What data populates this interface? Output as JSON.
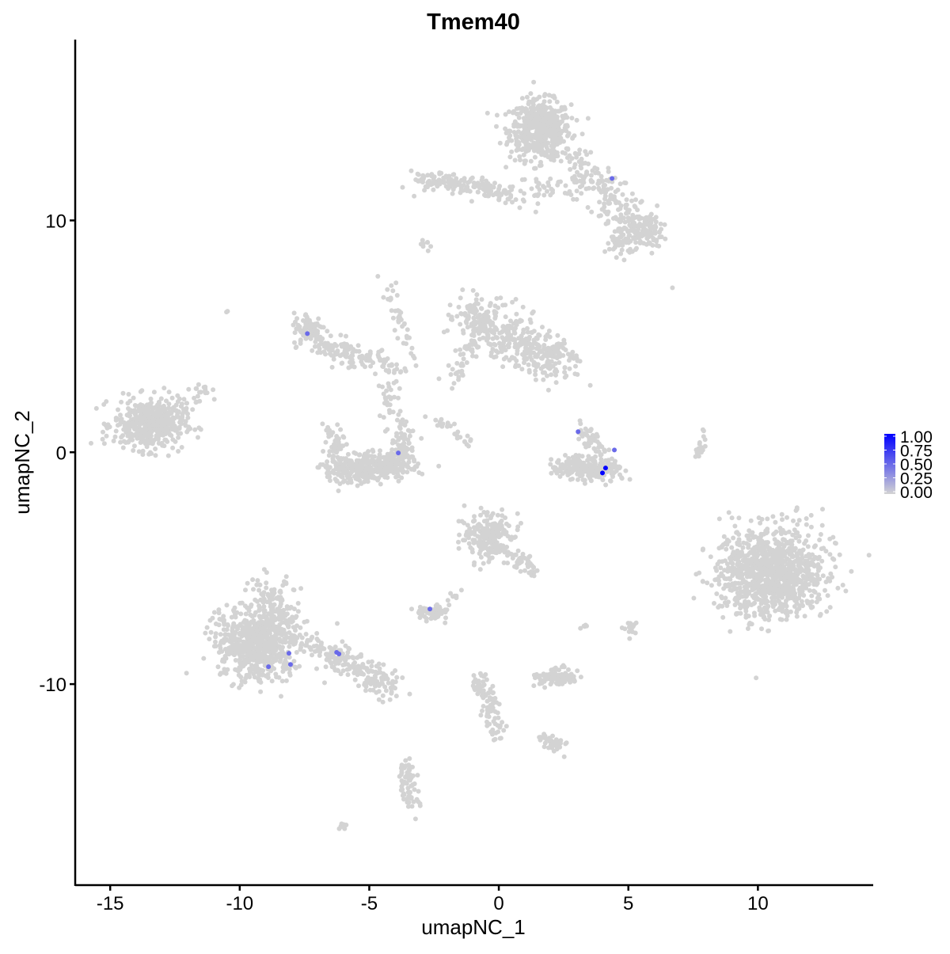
{
  "chart_data": {
    "type": "scatter",
    "title": "Tmem40",
    "xlabel": "umapNC_1",
    "ylabel": "umapNC_2",
    "xlim": [
      -16.35,
      14.45
    ],
    "ylim": [
      -18.67,
      17.8
    ],
    "xticks": [
      -15,
      -10,
      -5,
      0,
      5,
      10
    ],
    "yticks": [
      -10,
      0,
      10
    ],
    "xtick_labels": [
      "-15",
      "-10",
      "-5",
      "0",
      "5",
      "10"
    ],
    "ytick_labels": [
      "-10",
      "0",
      "10"
    ],
    "grid": false,
    "color_scale": {
      "low": "#D3D3D3",
      "high": "#0000FF",
      "min": 0,
      "max": 1
    },
    "legend": {
      "position": "right",
      "tick_values": [
        1.0,
        0.75,
        0.5,
        0.25,
        0.0
      ],
      "tick_labels": [
        "1.00",
        "0.75",
        "0.50",
        "0.25",
        "0.00"
      ]
    },
    "grey_cell_regions": [
      {
        "center": [
          1.6,
          13.9
        ],
        "spread": [
          0.65,
          0.7
        ],
        "n": 550
      },
      {
        "from": [
          2.8,
          12.8
        ],
        "to": [
          5.5,
          9.6
        ],
        "spread": [
          0.45,
          0.45
        ],
        "n": 180
      },
      {
        "center": [
          5.5,
          9.5
        ],
        "spread": [
          0.45,
          0.35
        ],
        "n": 120
      },
      {
        "center": [
          4.7,
          9.0
        ],
        "spread": [
          0.3,
          0.3
        ],
        "n": 40
      },
      {
        "from": [
          -3.1,
          11.8
        ],
        "to": [
          0.4,
          11.2
        ],
        "spread": [
          0.3,
          0.22
        ],
        "n": 160
      },
      {
        "from": [
          0.6,
          11.0
        ],
        "to": [
          3.2,
          11.6
        ],
        "spread": [
          0.3,
          0.35
        ],
        "n": 60
      },
      {
        "center": [
          -13.5,
          1.2
        ],
        "spread": [
          0.75,
          0.6
        ],
        "n": 450
      },
      {
        "from": [
          -12.6,
          1.5
        ],
        "to": [
          -11.3,
          2.8
        ],
        "spread": [
          0.25,
          0.25
        ],
        "n": 40
      },
      {
        "center": [
          -7.3,
          5.3
        ],
        "spread": [
          0.35,
          0.4
        ],
        "n": 90
      },
      {
        "from": [
          -7.0,
          4.6
        ],
        "to": [
          -4.0,
          3.8
        ],
        "spread": [
          0.35,
          0.3
        ],
        "n": 130
      },
      {
        "from": [
          -4.4,
          7.5
        ],
        "to": [
          -3.3,
          4.0
        ],
        "spread": [
          0.15,
          0.2
        ],
        "n": 40
      },
      {
        "from": [
          -4.3,
          3.2
        ],
        "to": [
          -4.1,
          1.0
        ],
        "spread": [
          0.2,
          0.2
        ],
        "n": 30
      },
      {
        "from": [
          -6.2,
          -0.9
        ],
        "to": [
          -3.7,
          -0.4
        ],
        "spread": [
          0.5,
          0.35
        ],
        "n": 380
      },
      {
        "from": [
          -6.4,
          1.0
        ],
        "to": [
          -6.2,
          -0.5
        ],
        "spread": [
          0.2,
          0.25
        ],
        "n": 50
      },
      {
        "from": [
          -3.8,
          1.4
        ],
        "to": [
          -3.6,
          -0.3
        ],
        "spread": [
          0.2,
          0.25
        ],
        "n": 50
      },
      {
        "from": [
          -1.3,
          6.0
        ],
        "to": [
          2.5,
          3.8
        ],
        "spread": [
          0.5,
          0.55
        ],
        "n": 450
      },
      {
        "from": [
          -1.8,
          3.0
        ],
        "to": [
          -1.0,
          5.0
        ],
        "spread": [
          0.2,
          0.25
        ],
        "n": 40
      },
      {
        "from": [
          -2.5,
          1.5
        ],
        "to": [
          -1.2,
          0.3
        ],
        "spread": [
          0.15,
          0.15
        ],
        "n": 25
      },
      {
        "from": [
          2.4,
          -0.6
        ],
        "to": [
          4.3,
          -0.8
        ],
        "spread": [
          0.45,
          0.25
        ],
        "n": 220
      },
      {
        "from": [
          3.1,
          1.2
        ],
        "to": [
          4.0,
          -0.2
        ],
        "spread": [
          0.2,
          0.2
        ],
        "n": 50
      },
      {
        "center": [
          10.5,
          -5.2
        ],
        "spread": [
          1.1,
          1.05
        ],
        "n": 1100
      },
      {
        "from": [
          7.6,
          -0.2
        ],
        "to": [
          8.0,
          1.0
        ],
        "spread": [
          0.08,
          0.2
        ],
        "n": 20
      },
      {
        "center": [
          -9.3,
          -8.3
        ],
        "spread": [
          0.9,
          0.8
        ],
        "n": 650
      },
      {
        "from": [
          -9.0,
          -6.0
        ],
        "to": [
          -8.3,
          -7.5
        ],
        "spread": [
          0.5,
          0.5
        ],
        "n": 150
      },
      {
        "from": [
          -7.2,
          -8.2
        ],
        "to": [
          -4.1,
          -10.2
        ],
        "spread": [
          0.35,
          0.3
        ],
        "n": 200
      },
      {
        "center": [
          -0.4,
          -3.7
        ],
        "spread": [
          0.5,
          0.55
        ],
        "n": 220
      },
      {
        "from": [
          0.2,
          -4.3
        ],
        "to": [
          1.3,
          -5.1
        ],
        "spread": [
          0.2,
          0.2
        ],
        "n": 50
      },
      {
        "center": [
          -2.6,
          -6.9
        ],
        "spread": [
          0.35,
          0.2
        ],
        "n": 60
      },
      {
        "from": [
          -1.6,
          -6.0
        ],
        "to": [
          -2.0,
          -6.6
        ],
        "spread": [
          0.1,
          0.1
        ],
        "n": 8
      },
      {
        "center": [
          2.3,
          -9.7
        ],
        "spread": [
          0.45,
          0.2
        ],
        "n": 90
      },
      {
        "from": [
          -0.8,
          -9.6
        ],
        "to": [
          0.0,
          -12.2
        ],
        "spread": [
          0.18,
          0.25
        ],
        "n": 90
      },
      {
        "from": [
          1.8,
          -12.3
        ],
        "to": [
          2.4,
          -12.8
        ],
        "spread": [
          0.2,
          0.15
        ],
        "n": 35
      },
      {
        "from": [
          -3.6,
          -13.5
        ],
        "to": [
          -3.4,
          -15.3
        ],
        "spread": [
          0.2,
          0.3
        ],
        "n": 70
      },
      {
        "from": [
          -6.1,
          -16.2
        ],
        "to": [
          -5.8,
          -16.0
        ],
        "spread": [
          0.08,
          0.06
        ],
        "n": 8
      },
      {
        "center": [
          5.1,
          -7.6
        ],
        "spread": [
          0.2,
          0.2
        ],
        "n": 15
      },
      {
        "center": [
          3.3,
          -7.5
        ],
        "spread": [
          0.1,
          0.1
        ],
        "n": 5
      },
      {
        "center": [
          6.7,
          7.1
        ],
        "spread": [
          0.02,
          0.02
        ],
        "n": 1
      },
      {
        "center": [
          -10.5,
          6.0
        ],
        "spread": [
          0.04,
          0.04
        ],
        "n": 2
      },
      {
        "center": [
          -2.8,
          9.0
        ],
        "spread": [
          0.15,
          0.15
        ],
        "n": 8
      }
    ],
    "expressing_cells": [
      {
        "x": 4.37,
        "y": 11.81,
        "value": 0.5
      },
      {
        "x": -7.39,
        "y": 5.12,
        "value": 0.5
      },
      {
        "x": -3.88,
        "y": -0.03,
        "value": 0.5
      },
      {
        "x": 3.06,
        "y": 0.89,
        "value": 0.5
      },
      {
        "x": 4.46,
        "y": 0.1,
        "value": 0.5
      },
      {
        "x": -2.66,
        "y": -6.76,
        "value": 0.5
      },
      {
        "x": -8.1,
        "y": -8.67,
        "value": 0.5
      },
      {
        "x": -8.89,
        "y": -9.25,
        "value": 0.5
      },
      {
        "x": -8.04,
        "y": -9.15,
        "value": 0.5
      },
      {
        "x": -6.26,
        "y": -8.63,
        "value": 0.5
      },
      {
        "x": -6.17,
        "y": -8.7,
        "value": 0.5
      },
      {
        "x": 4.12,
        "y": -0.68,
        "value": 1.0
      },
      {
        "x": 4.0,
        "y": -0.89,
        "value": 1.0
      }
    ]
  }
}
